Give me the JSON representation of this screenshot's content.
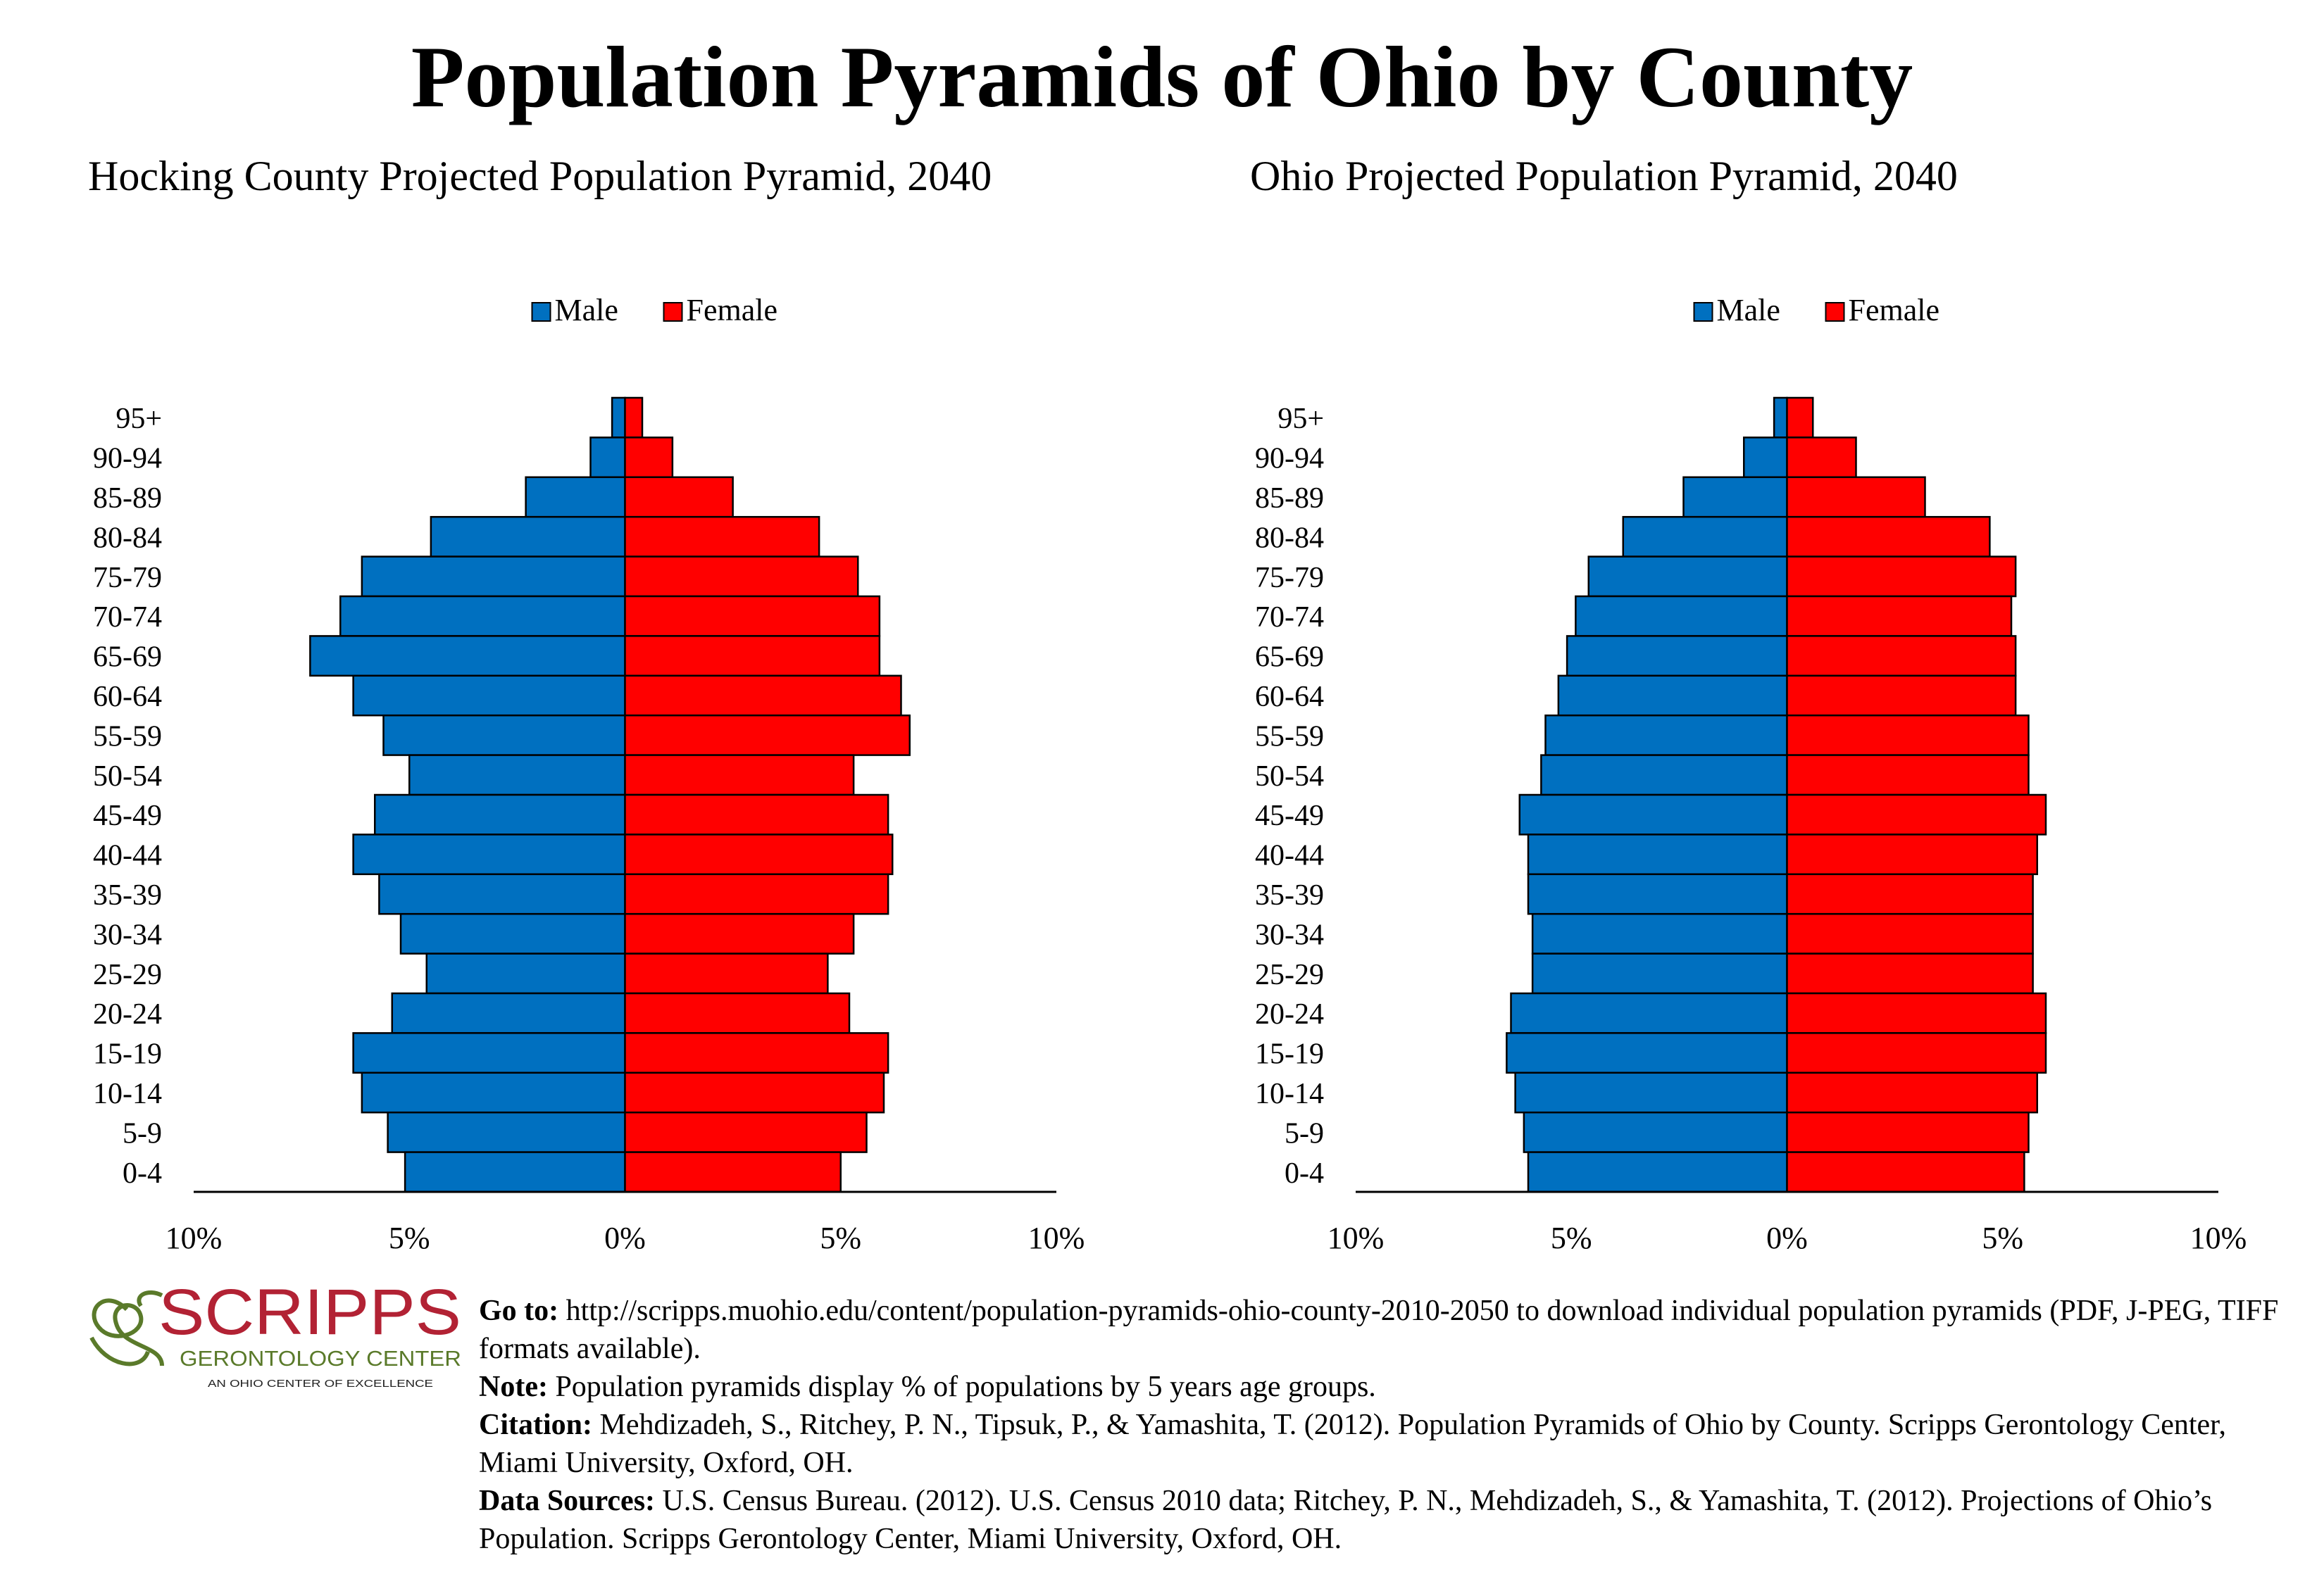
{
  "title": "Population Pyramids of Ohio by County",
  "colors": {
    "male": "#0070C0",
    "female": "#FF0000"
  },
  "legend": {
    "male": "Male",
    "female": "Female"
  },
  "chart_data": [
    {
      "type": "bar",
      "orientation": "horizontal-pyramid",
      "title": "Hocking County Projected Population Pyramid, 2040",
      "categories": [
        "95+",
        "90-94",
        "85-89",
        "80-84",
        "75-79",
        "70-74",
        "65-69",
        "60-64",
        "55-59",
        "50-54",
        "45-49",
        "40-44",
        "35-39",
        "30-34",
        "25-29",
        "20-24",
        "15-19",
        "10-14",
        "5-9",
        "0-4"
      ],
      "series": [
        {
          "name": "Male",
          "values": [
            0.3,
            0.8,
            2.3,
            4.5,
            6.1,
            6.6,
            7.3,
            6.3,
            5.6,
            5.0,
            5.8,
            6.3,
            5.7,
            5.2,
            4.6,
            5.4,
            6.3,
            6.1,
            5.5,
            5.1
          ]
        },
        {
          "name": "Female",
          "values": [
            0.4,
            1.1,
            2.5,
            4.5,
            5.4,
            5.9,
            5.9,
            6.4,
            6.6,
            5.3,
            6.1,
            6.2,
            6.1,
            5.3,
            4.7,
            5.2,
            6.1,
            6.0,
            5.6,
            5.0
          ]
        }
      ],
      "xlim": [
        -10,
        10
      ],
      "xticks": [
        "10%",
        "5%",
        "0%",
        "5%",
        "10%"
      ],
      "legend_position": "top"
    },
    {
      "type": "bar",
      "orientation": "horizontal-pyramid",
      "title": "Ohio Projected Population Pyramid, 2040",
      "categories": [
        "95+",
        "90-94",
        "85-89",
        "80-84",
        "75-79",
        "70-74",
        "65-69",
        "60-64",
        "55-59",
        "50-54",
        "45-49",
        "40-44",
        "35-39",
        "30-34",
        "25-29",
        "20-24",
        "15-19",
        "10-14",
        "5-9",
        "0-4"
      ],
      "series": [
        {
          "name": "Male",
          "values": [
            0.3,
            1.0,
            2.4,
            3.8,
            4.6,
            4.9,
            5.1,
            5.3,
            5.6,
            5.7,
            6.2,
            6.0,
            6.0,
            5.9,
            5.9,
            6.4,
            6.5,
            6.3,
            6.1,
            6.0
          ]
        },
        {
          "name": "Female",
          "values": [
            0.6,
            1.6,
            3.2,
            4.7,
            5.3,
            5.2,
            5.3,
            5.3,
            5.6,
            5.6,
            6.0,
            5.8,
            5.7,
            5.7,
            5.7,
            6.0,
            6.0,
            5.8,
            5.6,
            5.5
          ]
        }
      ],
      "xlim": [
        -10,
        10
      ],
      "xticks": [
        "10%",
        "5%",
        "0%",
        "5%",
        "10%"
      ],
      "legend_position": "top"
    }
  ],
  "logo": {
    "name": "SCRIPPS",
    "line2": "GERONTOLOGY CENTER",
    "line3": "AN OHIO CENTER OF EXCELLENCE"
  },
  "notes": {
    "goto_label": "Go to:",
    "goto_text": " http://scripps.muohio.edu/content/population-pyramids-ohio-county-2010-2050 to download individual population pyramids (PDF, J-PEG, TIFF formats available).",
    "note_label": "Note:",
    "note_text": " Population pyramids display % of populations by 5 years age groups.",
    "citation_label": "Citation:",
    "citation_text": " Mehdizadeh, S., Ritchey, P. N., Tipsuk, P., & Yamashita, T. (2012). Population Pyramids of Ohio by County. Scripps Gerontology Center, Miami University, Oxford, OH.",
    "sources_label": "Data Sources:",
    "sources_text": " U.S. Census Bureau. (2012). U.S. Census 2010 data; Ritchey, P. N., Mehdizadeh, S., & Yamashita, T. (2012). Projections of Ohio’s Population. Scripps Gerontology Center, Miami University, Oxford, OH."
  }
}
